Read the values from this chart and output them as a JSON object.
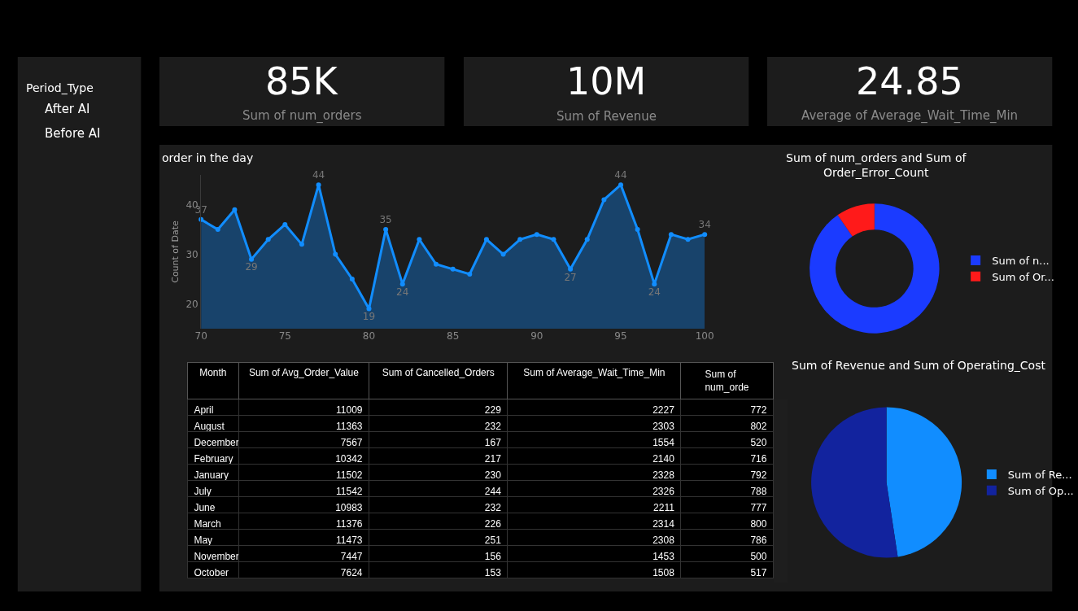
{
  "chart_data": [
    {
      "type": "other",
      "annotations": [
        "85K",
        "Sum of num_orders",
        "10M",
        "Sum of Revenue",
        "24.85",
        "Average of Average_Wait_Time_Min"
      ]
    },
    {
      "type": "other",
      "title": "Period_Type",
      "categories": [
        "After AI",
        "Before AI"
      ]
    },
    {
      "type": "area",
      "title": "order in the day",
      "ylabel": "Count of Date",
      "x": [
        70,
        71,
        72,
        73,
        74,
        75,
        76,
        77,
        78,
        79,
        80,
        81,
        82,
        83,
        84,
        85,
        86,
        87,
        88,
        89,
        90,
        91,
        92,
        93,
        94,
        95,
        96,
        97,
        98,
        99,
        100
      ],
      "values": [
        37,
        35,
        39,
        29,
        33,
        36,
        32,
        44,
        30,
        25,
        19,
        35,
        24,
        33,
        28,
        27,
        26,
        33,
        30,
        33,
        34,
        33,
        27,
        33,
        41,
        44,
        35,
        24,
        34,
        33,
        34
      ],
      "value_labels": [
        "37",
        null,
        null,
        "29",
        null,
        null,
        null,
        "44",
        null,
        null,
        "19",
        "35",
        "24",
        null,
        null,
        null,
        null,
        null,
        null,
        null,
        null,
        null,
        "27",
        null,
        null,
        "44",
        null,
        "24",
        null,
        null,
        "34"
      ],
      "color": "#118dff",
      "xlim": [
        70,
        100
      ],
      "xticks": [
        70,
        75,
        80,
        85,
        90,
        95,
        100
      ],
      "ylim": [
        15,
        46
      ],
      "yticks": [
        20,
        30,
        40
      ],
      "marker": "circle",
      "grid": false,
      "legend": false
    },
    {
      "type": "donut",
      "title": "Sum of num_orders and Sum of Order_Error_Count",
      "categories": [
        "Sum of n...",
        "Sum of Or..."
      ],
      "values": [
        90.4,
        9.6
      ],
      "colors": [
        "#1b3bff",
        "#ff1a1a"
      ],
      "legend": "right"
    },
    {
      "type": "pie",
      "title": "Sum of Revenue and Sum of Operating_Cost",
      "categories": [
        "Sum of Re...",
        "Sum of Op..."
      ],
      "values": [
        47.6,
        52.4
      ],
      "colors": [
        "#118dff",
        "#12239e"
      ],
      "legend": "right"
    },
    {
      "type": "other",
      "xlabel": "Month",
      "data_labels": true,
      "categories": [
        "April",
        "August",
        "December",
        "February",
        "January",
        "July",
        "June",
        "March",
        "May",
        "November",
        "October"
      ],
      "series": [
        {
          "name": "Sum of Avg_Order_Value",
          "values": [
            11009,
            11363,
            7567,
            10342,
            11502,
            11542,
            10983,
            11376,
            11473,
            7447,
            7624
          ]
        },
        {
          "name": "Sum of Cancelled_Orders",
          "values": [
            229,
            232,
            167,
            217,
            230,
            244,
            232,
            226,
            251,
            156,
            153
          ]
        },
        {
          "name": "Sum of Average_Wait_Time_Min",
          "values": [
            2227,
            2303,
            1554,
            2140,
            2328,
            2326,
            2211,
            2314,
            2308,
            1453,
            1508
          ]
        },
        {
          "name": "Sum of num_orde",
          "values": [
            772,
            802,
            520,
            716,
            792,
            788,
            777,
            800,
            786,
            500,
            517
          ]
        }
      ]
    }
  ]
}
